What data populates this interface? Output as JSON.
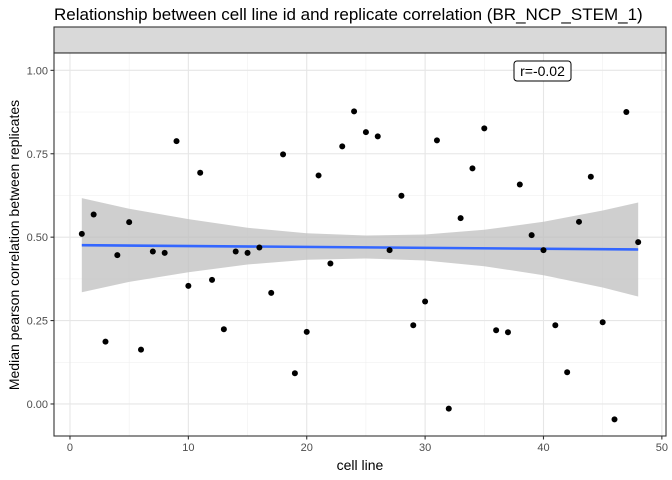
{
  "chart_data": {
    "type": "scatter",
    "title": "Relationship between cell line id and replicate correlation (BR_NCP_STEM_1)",
    "xlabel": "cell line",
    "ylabel": "Median pearson correlation between replicates",
    "xlim": [
      -1.35,
      50.35
    ],
    "ylim": [
      -0.096,
      1.052
    ],
    "xticks": [
      0,
      10,
      20,
      30,
      40,
      50
    ],
    "xtick_labels": [
      "0",
      "10",
      "20",
      "30",
      "40",
      "50"
    ],
    "yticks": [
      0,
      0.25,
      0.5,
      0.75,
      1.0
    ],
    "ytick_labels": [
      "0.00",
      "0.25",
      "0.50",
      "0.75",
      "1.00"
    ],
    "grid": true,
    "facet_strip": "",
    "annotation": "r=-0.02",
    "point_color": "#000000",
    "trend_color": "#3366ff",
    "ribbon_color": "#bfbfbf",
    "points": {
      "x": [
        1,
        2,
        3,
        4,
        5,
        6,
        7,
        8,
        9,
        10,
        11,
        12,
        13,
        14,
        15,
        16,
        17,
        18,
        19,
        20,
        21,
        22,
        23,
        24,
        25,
        26,
        27,
        28,
        29,
        30,
        31,
        32,
        33,
        34,
        35,
        36,
        37,
        38,
        39,
        40,
        41,
        42,
        43,
        44,
        45,
        46,
        47,
        48
      ],
      "y": [
        0.51,
        0.568,
        0.187,
        0.446,
        0.545,
        0.163,
        0.457,
        0.453,
        0.788,
        0.354,
        0.693,
        0.372,
        0.224,
        0.457,
        0.453,
        0.469,
        0.333,
        0.748,
        0.092,
        0.216,
        0.685,
        0.421,
        0.772,
        0.877,
        0.815,
        0.802,
        0.461,
        0.624,
        0.236,
        0.307,
        0.79,
        -0.014,
        0.557,
        0.706,
        0.826,
        0.221,
        0.215,
        0.658,
        0.506,
        0.461,
        0.236,
        0.095,
        0.546,
        0.681,
        0.245,
        -0.046,
        0.875,
        0.485
      ]
    },
    "trend": {
      "x": [
        1,
        48
      ],
      "y": [
        0.476,
        0.463
      ]
    },
    "ribbon": {
      "x": [
        1,
        5,
        10,
        15,
        20,
        25,
        30,
        35,
        40,
        45,
        48
      ],
      "upper": [
        0.617,
        0.585,
        0.554,
        0.528,
        0.512,
        0.505,
        0.508,
        0.522,
        0.546,
        0.58,
        0.604
      ],
      "lower": [
        0.335,
        0.366,
        0.395,
        0.418,
        0.432,
        0.436,
        0.43,
        0.413,
        0.386,
        0.349,
        0.322
      ]
    }
  }
}
